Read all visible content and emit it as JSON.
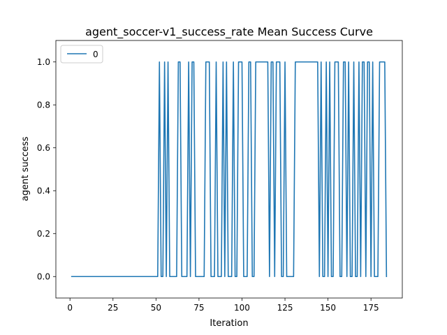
{
  "chart_data": {
    "type": "line",
    "title": "agent_soccer-v1_success_rate Mean Success Curve",
    "xlabel": "Iteration",
    "ylabel": "agent success",
    "xlim": [
      -8.2,
      193.2
    ],
    "ylim": [
      -0.1,
      1.1
    ],
    "xticks": [
      0,
      25,
      50,
      75,
      100,
      125,
      150,
      175
    ],
    "yticks": [
      0.0,
      0.2,
      0.4,
      0.6,
      0.8,
      1.0
    ],
    "ytick_labels": [
      "0.0",
      "0.2",
      "0.4",
      "0.6",
      "0.8",
      "1.0"
    ],
    "legend": {
      "placement": "top-left",
      "entries": [
        "0"
      ]
    },
    "grid": false,
    "series": [
      {
        "name": "0",
        "color": "#1f77b4",
        "x": [
          1,
          51,
          52,
          53,
          54,
          55,
          56,
          57,
          58,
          59,
          60,
          61,
          62,
          63,
          64,
          65,
          66,
          67,
          68,
          69,
          70,
          71,
          72,
          73,
          74,
          75,
          76,
          77,
          78,
          79,
          80,
          81,
          82,
          83,
          84,
          85,
          86,
          87,
          88,
          89,
          90,
          91,
          92,
          93,
          94,
          95,
          96,
          97,
          98,
          99,
          100,
          101,
          102,
          103,
          104,
          105,
          106,
          107,
          108,
          109,
          110,
          111,
          112,
          113,
          114,
          115,
          116,
          117,
          118,
          119,
          120,
          121,
          122,
          123,
          124,
          125,
          126,
          127,
          128,
          129,
          130,
          131,
          132,
          133,
          134,
          135,
          136,
          137,
          138,
          139,
          140,
          141,
          142,
          143,
          144,
          145,
          146,
          147,
          148,
          149,
          150,
          151,
          152,
          153,
          154,
          155,
          156,
          157,
          158,
          159,
          160,
          161,
          162,
          163,
          164,
          165,
          166,
          167,
          168,
          169,
          170,
          171,
          172,
          173,
          174,
          175,
          176,
          177,
          178,
          179,
          180,
          181,
          182,
          183,
          184
        ],
        "y": [
          0,
          0,
          1,
          0,
          0,
          1,
          0,
          1,
          0,
          0,
          0,
          0,
          0,
          1,
          1,
          0,
          0,
          0,
          0,
          1,
          0,
          1,
          1,
          0,
          0,
          0,
          0,
          0,
          0,
          1,
          1,
          1,
          0,
          0,
          0,
          1,
          0,
          0,
          0,
          1,
          0,
          1,
          0,
          0,
          0,
          1,
          0,
          0,
          1,
          1,
          1,
          0,
          0,
          0,
          1,
          1,
          0,
          0,
          1,
          1,
          1,
          1,
          1,
          1,
          1,
          1,
          0,
          1,
          1,
          0,
          1,
          1,
          1,
          0,
          0,
          1,
          0,
          0,
          0,
          0,
          0,
          1,
          1,
          1,
          1,
          1,
          1,
          1,
          1,
          1,
          1,
          1,
          1,
          1,
          1,
          0,
          1,
          0,
          0,
          1,
          0,
          1,
          0,
          0,
          1,
          1,
          1,
          0,
          0,
          1,
          1,
          0,
          1,
          0,
          0,
          1,
          0,
          0,
          1,
          0,
          1,
          1,
          0,
          1,
          1,
          0,
          1,
          0,
          0,
          0,
          1,
          1,
          1,
          1,
          0
        ]
      }
    ]
  }
}
